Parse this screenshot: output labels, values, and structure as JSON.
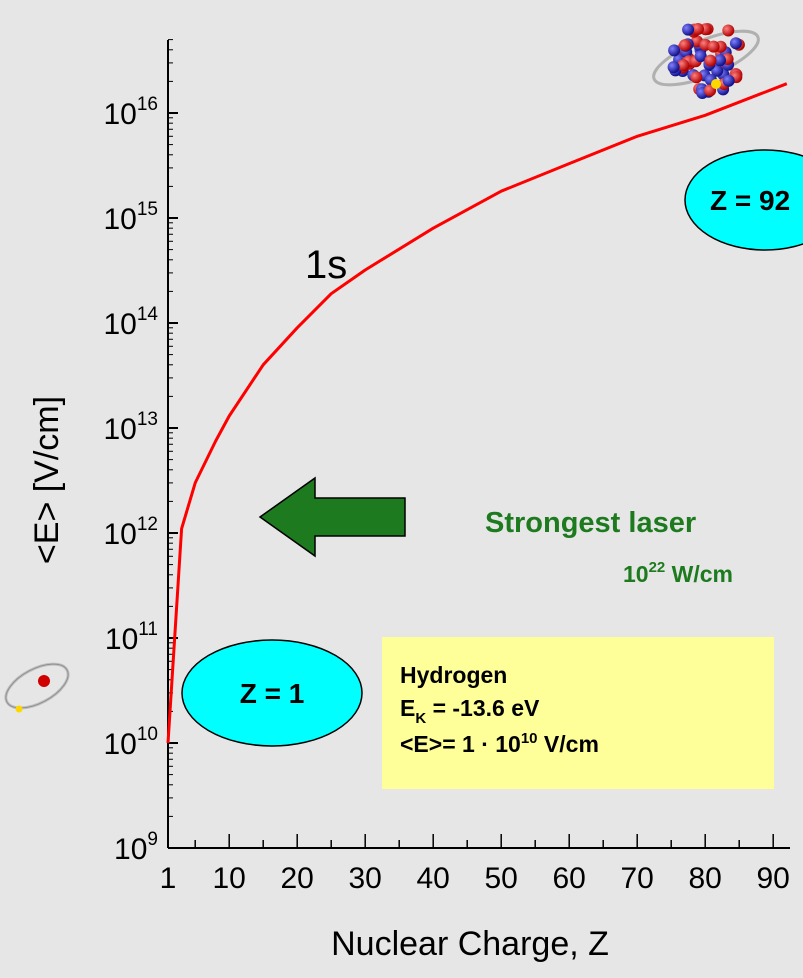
{
  "chart_data": {
    "type": "line",
    "x": [
      1,
      3,
      5,
      8,
      10,
      15,
      20,
      25,
      30,
      40,
      50,
      60,
      70,
      80,
      92
    ],
    "series": [
      {
        "name": "1s",
        "values": [
          10000000000.0,
          1100000000000.0,
          3000000000000.0,
          7500000000000.0,
          13000000000000.0,
          40000000000000.0,
          90000000000000.0,
          190000000000000.0,
          320000000000000.0,
          800000000000000.0,
          1800000000000000.0,
          3300000000000000.0,
          6000000000000000.0,
          9500000000000000.0,
          1.9e+16
        ]
      }
    ],
    "xlabel": "Nuclear Charge, Z",
    "ylabel": "<E>  [V/cm]",
    "xlim": [
      1,
      92
    ],
    "ylim_exponents": [
      9,
      16
    ],
    "y_scale": "log",
    "x_ticks": [
      "1",
      "10",
      "20",
      "30",
      "40",
      "50",
      "60",
      "70",
      "80",
      "90"
    ],
    "y_tick_base": "10",
    "y_tick_exponents": [
      "9",
      "10",
      "11",
      "12",
      "13",
      "14",
      "15",
      "16"
    ],
    "line_color": "#ff0000"
  },
  "annotations": {
    "curve_label": "1s",
    "ellipse_z1": "Z = 1",
    "ellipse_z92": "Z = 92",
    "arrow_color": "#1e7a1e",
    "laser_title": "Strongest laser",
    "laser_value_base": "10",
    "laser_value_exp": "22",
    "laser_value_unit": " W/cm"
  },
  "hydrogen_box": {
    "title": "Hydrogen",
    "ek_main": "E",
    "ek_sub": "K",
    "ek_value": " = -13.6 eV",
    "field_prefix": "<E>= 1 ·  10",
    "field_exp": "10",
    "field_unit": " V/cm"
  },
  "icons": {
    "atom_small": "hydrogen-atom-icon",
    "nucleus": "heavy-nucleus-icon"
  }
}
